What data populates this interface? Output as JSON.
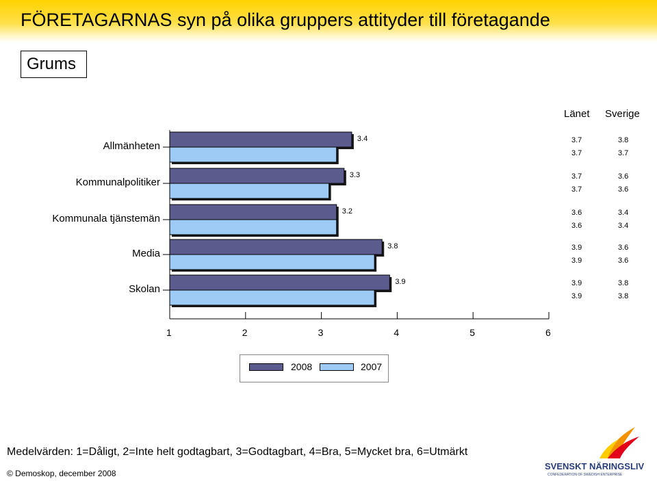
{
  "title": "FÖRETAGARNAS syn på olika gruppers attityder till företagande",
  "region": "Grums",
  "columns": [
    "Länet",
    "Sverige"
  ],
  "note": "Medelvärden: 1=Dåligt, 2=Inte helt godtagbart, 3=Godtagbart, 4=Bra, 5=Mycket bra, 6=Utmärkt",
  "copyright": "© Demoskop, december 2008",
  "logo": {
    "name": "SVENSKT NÄRINGSLIV",
    "sub": "CONFEDERATION OF SWEDISH ENTERPRISE"
  },
  "colors": {
    "series_2008": "#5b5b8e",
    "series_2007": "#9ecbf5"
  },
  "chart_data": {
    "type": "bar",
    "orientation": "horizontal",
    "categories": [
      "Allmänheten",
      "Kommunalpolitiker",
      "Kommunala tjänstemän",
      "Media",
      "Skolan"
    ],
    "series": [
      {
        "name": "2008",
        "values": [
          3.4,
          3.3,
          3.2,
          3.8,
          3.9
        ]
      },
      {
        "name": "2007",
        "values": [
          3.2,
          3.1,
          3.2,
          3.7,
          3.7
        ]
      }
    ],
    "xlim": [
      1,
      6
    ],
    "xticks": [
      "1",
      "2",
      "3",
      "4",
      "5",
      "6"
    ],
    "lanet": [
      [
        "3.7",
        "3.7"
      ],
      [
        "3.7",
        "3.7"
      ],
      [
        "3.6",
        "3.6"
      ],
      [
        "3.9",
        "3.9"
      ],
      [
        "3.9",
        "3.9"
      ]
    ],
    "sverige": [
      [
        "3.8",
        "3.7"
      ],
      [
        "3.6",
        "3.6"
      ],
      [
        "3.4",
        "3.4"
      ],
      [
        "3.6",
        "3.6"
      ],
      [
        "3.8",
        "3.8"
      ]
    ],
    "legend_position": "bottom-center"
  }
}
